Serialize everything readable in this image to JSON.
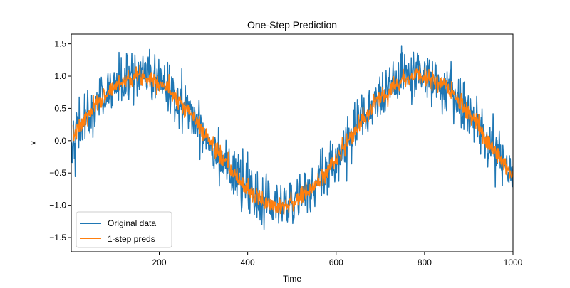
{
  "chart_data": {
    "type": "line",
    "title": "One-Step Prediction",
    "xlabel": "Time",
    "ylabel": "x",
    "xlim": [
      1,
      1000
    ],
    "ylim": [
      -1.72,
      1.65
    ],
    "xticks": [
      200,
      400,
      600,
      800,
      1000
    ],
    "yticks": [
      -1.5,
      -1.0,
      -0.5,
      0.0,
      0.5,
      1.0,
      1.5
    ],
    "xtick_labels": [
      "200",
      "400",
      "600",
      "800",
      "1000"
    ],
    "ytick_labels": [
      "−1.5",
      "−1.0",
      "−0.5",
      "0.0",
      "0.5",
      "1.0",
      "1.5"
    ],
    "grid": false,
    "legend_position": "lower-left",
    "signal": {
      "function": "sin(0.01 * time)",
      "x_start": 1,
      "x_end": 1000,
      "n_points": 1000
    },
    "series": [
      {
        "name": "Original data",
        "color": "#1f77b4",
        "noise_std": 0.2,
        "x_start": 1,
        "x_end": 1000
      },
      {
        "name": "1-step preds",
        "color": "#ff7f0e",
        "noise_std": 0.07,
        "x_start": 5,
        "x_end": 1000
      }
    ]
  }
}
